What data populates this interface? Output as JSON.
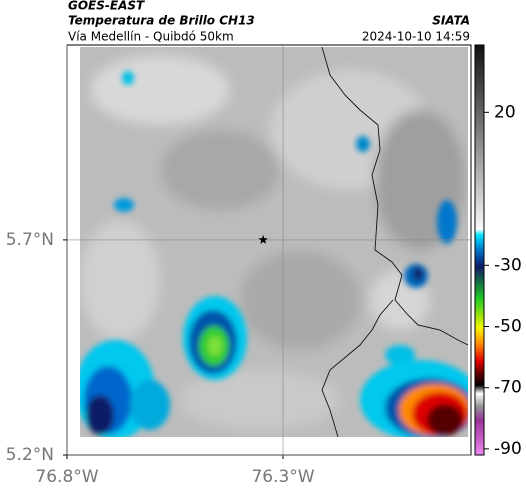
{
  "chart_data": {
    "type": "map",
    "title": "GOES-EAST",
    "subtitle": "Temperatura de Brillo CH13",
    "source": "SIATA",
    "route": "Vía Medellín - Quibdó 50km",
    "timestamp": "2024-10-10 14:59",
    "xlim": [
      -76.8,
      -75.865
    ],
    "ylim": [
      5.2,
      6.153
    ],
    "xticks": [
      {
        "value": -76.8,
        "label": "76.8°W"
      },
      {
        "value": -76.3,
        "label": "76.3°W"
      }
    ],
    "yticks": [
      {
        "value": 5.2,
        "label": "5.2°N"
      },
      {
        "value": 5.7,
        "label": "5.7°N"
      }
    ],
    "grid": true,
    "marker": {
      "lon": -76.346,
      "lat": 5.7
    },
    "colorbar": {
      "lim": [
        -92,
        42
      ],
      "ticks": [
        20,
        -30,
        -50,
        -70,
        -90
      ]
    }
  }
}
